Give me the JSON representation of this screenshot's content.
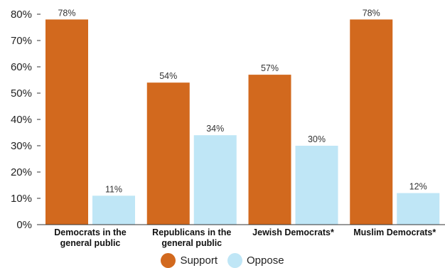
{
  "chart_data": {
    "type": "bar",
    "categories": [
      [
        "Democrats in the",
        "general public"
      ],
      [
        "Republicans in the",
        "general public"
      ],
      [
        "Jewish Democrats*"
      ],
      [
        "Muslim Democrats*"
      ]
    ],
    "series": [
      {
        "name": "Support",
        "values": [
          78,
          54,
          57,
          78
        ],
        "labels": [
          "78%",
          "54%",
          "57%",
          "78%"
        ],
        "color": "#d2691e"
      },
      {
        "name": "Oppose",
        "values": [
          11,
          34,
          30,
          12
        ],
        "labels": [
          "11%",
          "34%",
          "30%",
          "12%"
        ],
        "color": "#bfe6f6"
      }
    ],
    "yticks": [
      "0%",
      "10%",
      "20%",
      "30%",
      "40%",
      "50%",
      "60%",
      "70%",
      "80%"
    ],
    "ylim": [
      0,
      80
    ],
    "grid": false,
    "legend_position": "bottom"
  }
}
